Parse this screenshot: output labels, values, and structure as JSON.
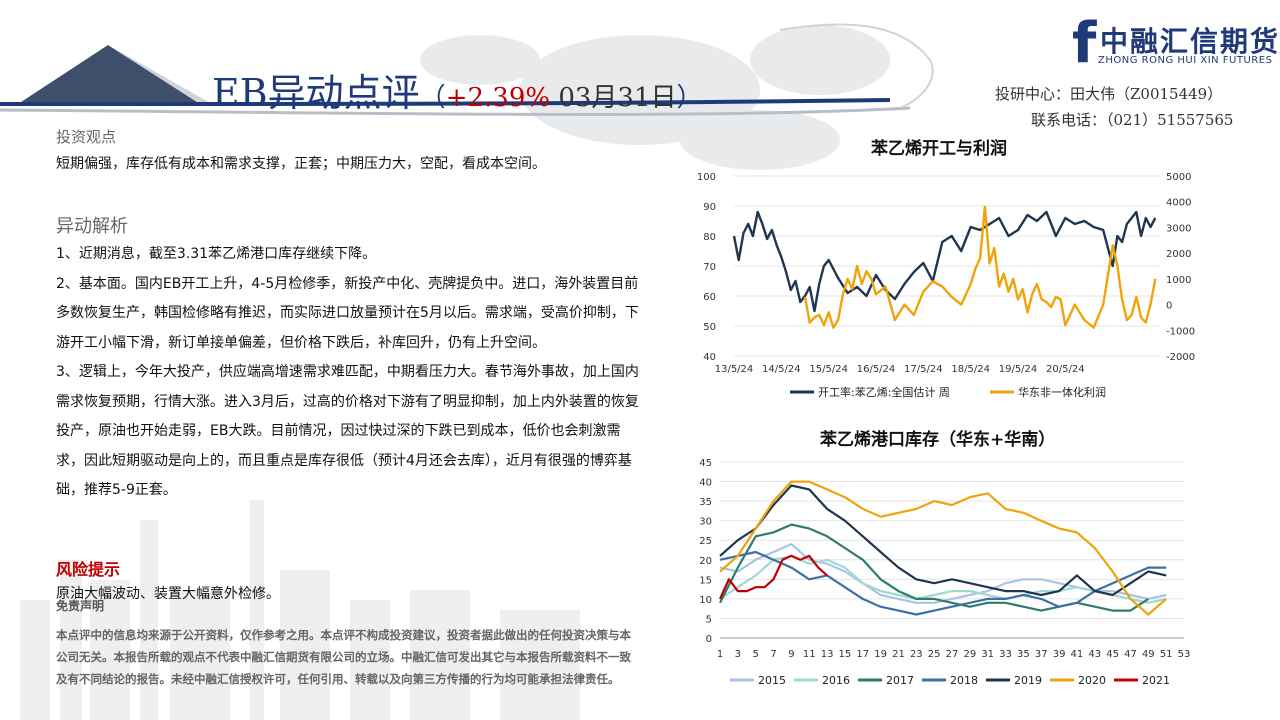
{
  "header": {
    "title_main": "EB异动点评",
    "paren_open": "（",
    "pct": "+2.39%",
    "date": " 03月31日",
    "paren_close": "）"
  },
  "brand": {
    "mark": "f",
    "name_cn": "中融汇信期货",
    "name_en": "ZHONG RONG HUI XIN FUTURES"
  },
  "contact": {
    "line1": "投研中心：田大伟（Z0015449）",
    "line2": "联系电话：（021）51557565"
  },
  "sections": {
    "view_title": "投资观点",
    "view_text": "短期偏强，库存低有成本和需求支撑，正套；中期压力大，空配，看成本空间。",
    "analysis_title": "异动解析",
    "analysis_paras": [
      "1、近期消息，截至3.31苯乙烯港口库存继续下降。",
      "2、基本面。国内EB开工上升，4-5月检修季，新投产中化、壳牌提负中。进口，海外装置目前多数恢复生产，韩国检修略有推迟，而实际进口放量预计在5月以后。需求端，受高价抑制，下游开工小幅下滑，新订单接单偏差，但价格下跌后，补库回升，仍有上升空间。",
      "3、逻辑上，今年大投产，供应端高增速需求难匹配，中期看压力大。春节海外事故，加上国内需求恢复预期，行情大涨。进入3月后，过高的价格对下游有了明显抑制，加上内外装置的恢复投产，原油也开始走弱，EB大跌。目前情况，因过快过深的下跌已到成本，低价也会刺激需求，因此短期驱动是向上的，而且重点是库存很低（预计4月还会去库），近月有很强的博弈基础，推荐5-9正套。"
    ],
    "risk_title": "风险提示",
    "risk_text": "原油大幅波动、装置大幅意外检修。",
    "disclaimer_title": "免责声明",
    "disclaimer_text": "本点评中的信息均来源于公开资料，仅作参考之用。本点评不构成投资建议，投资者据此做出的任何投资决策与本公司无关。本报告所载的观点不代表中融汇信期货有限公司的立场。中融汇信可发出其它与本报告所载资料不一致及有不同结论的报告。未经中融汇信授权许可，任何引用、转载以及向第三方传播的行为均可能承担法律责任。"
  },
  "chart_data": [
    {
      "type": "line",
      "title": "苯乙烯开工与利润",
      "x_ticks": [
        "13/5/24",
        "14/5/24",
        "15/5/24",
        "16/5/24",
        "17/5/24",
        "18/5/24",
        "19/5/24",
        "20/5/24"
      ],
      "y_left": [
        40,
        100
      ],
      "y_left_ticks": [
        40,
        50,
        60,
        70,
        80,
        90,
        100
      ],
      "y_right": [
        -2000,
        5000
      ],
      "y_right_ticks": [
        -2000,
        -1000,
        0,
        1000,
        2000,
        3000,
        4000,
        5000
      ],
      "series": [
        {
          "name": "开工率:苯乙烯:全国估计 周",
          "axis": "left",
          "color": "#1f3550",
          "x": [
            13.0,
            13.1,
            13.2,
            13.3,
            13.4,
            13.5,
            13.6,
            13.7,
            13.8,
            13.9,
            14.0,
            14.1,
            14.2,
            14.3,
            14.4,
            14.5,
            14.6,
            14.7,
            14.8,
            14.9,
            15.0,
            15.2,
            15.4,
            15.6,
            15.8,
            16.0,
            16.2,
            16.4,
            16.6,
            16.8,
            17.0,
            17.2,
            17.4,
            17.6,
            17.8,
            18.0,
            18.2,
            18.4,
            18.6,
            18.8,
            19.0,
            19.2,
            19.4,
            19.6,
            19.8,
            20.0,
            20.2,
            20.4,
            20.6,
            20.8,
            21.0,
            21.1,
            21.2,
            21.3,
            21.4,
            21.5,
            21.6,
            21.7,
            21.8,
            21.9
          ],
          "y": [
            80,
            72,
            81,
            84,
            80,
            88,
            84,
            79,
            82,
            77,
            73,
            68,
            62,
            65,
            58,
            60,
            63,
            55,
            64,
            70,
            72,
            66,
            61,
            63,
            60,
            67,
            62,
            59,
            64,
            68,
            71,
            65,
            78,
            80,
            75,
            83,
            82,
            84,
            86,
            80,
            82,
            87,
            85,
            88,
            80,
            86,
            84,
            85,
            83,
            82,
            70,
            80,
            78,
            84,
            86,
            88,
            80,
            86,
            83,
            86
          ]
        },
        {
          "name": "华东非一体化利润",
          "axis": "right",
          "color": "#f0a30a",
          "x": [
            14.5,
            14.6,
            14.7,
            14.8,
            14.9,
            15.0,
            15.1,
            15.2,
            15.3,
            15.4,
            15.5,
            15.6,
            15.7,
            15.8,
            15.9,
            16.0,
            16.2,
            16.4,
            16.6,
            16.8,
            17.0,
            17.2,
            17.4,
            17.6,
            17.8,
            18.0,
            18.1,
            18.2,
            18.3,
            18.4,
            18.5,
            18.6,
            18.7,
            18.8,
            18.9,
            19.0,
            19.1,
            19.2,
            19.3,
            19.4,
            19.5,
            19.6,
            19.7,
            19.8,
            19.9,
            20.0,
            20.2,
            20.4,
            20.6,
            20.8,
            21.0,
            21.1,
            21.2,
            21.3,
            21.4,
            21.5,
            21.6,
            21.7,
            21.8,
            21.9
          ],
          "y": [
            300,
            -700,
            -500,
            -400,
            -800,
            -300,
            -900,
            -600,
            400,
            1000,
            600,
            1500,
            800,
            1300,
            1000,
            400,
            700,
            -600,
            0,
            -400,
            500,
            900,
            700,
            300,
            0,
            800,
            1400,
            1800,
            3800,
            1600,
            2200,
            700,
            1200,
            500,
            1000,
            200,
            600,
            -300,
            400,
            800,
            200,
            100,
            -100,
            300,
            200,
            -800,
            0,
            -600,
            -900,
            0,
            2300,
            1500,
            200,
            -600,
            -400,
            300,
            -500,
            -700,
            0,
            1000
          ]
        }
      ]
    },
    {
      "type": "line",
      "title": "苯乙烯港口库存（华东+华南）",
      "x_ticks": [
        1,
        3,
        5,
        7,
        9,
        11,
        13,
        15,
        17,
        19,
        21,
        23,
        25,
        27,
        29,
        31,
        33,
        35,
        37,
        39,
        41,
        43,
        45,
        47,
        49,
        51,
        53
      ],
      "y_range": [
        0,
        45
      ],
      "y_ticks": [
        0,
        5,
        10,
        15,
        20,
        25,
        30,
        35,
        40,
        45
      ],
      "series": [
        {
          "name": "2015",
          "color": "#a9c4e4",
          "x": [
            1,
            3,
            5,
            7,
            9,
            11,
            13,
            15,
            17,
            19,
            21,
            23,
            25,
            27,
            29,
            31,
            33,
            35,
            37,
            39,
            41,
            43,
            45,
            47,
            49,
            51
          ],
          "y": [
            18,
            17,
            20,
            22,
            24,
            20,
            19,
            17,
            14,
            11,
            10,
            9,
            9,
            10,
            11,
            12,
            14,
            15,
            15,
            14,
            13,
            12,
            12,
            11,
            10,
            11
          ]
        },
        {
          "name": "2016",
          "color": "#9fd9cf",
          "x": [
            1,
            3,
            5,
            7,
            9,
            11,
            13,
            15,
            17,
            19,
            21,
            23,
            25,
            27,
            29,
            31,
            33,
            35,
            37,
            39,
            41,
            43,
            45,
            47,
            49,
            51
          ],
          "y": [
            10,
            13,
            16,
            20,
            21,
            19,
            20,
            18,
            14,
            12,
            11,
            10,
            11,
            12,
            12,
            11,
            10,
            11,
            12,
            12,
            13,
            12,
            11,
            10,
            9,
            10
          ]
        },
        {
          "name": "2017",
          "color": "#2e7d6b",
          "x": [
            1,
            3,
            5,
            7,
            9,
            11,
            13,
            15,
            17,
            19,
            21,
            23,
            25,
            27,
            29,
            31,
            33,
            35,
            37,
            39,
            41,
            43,
            45,
            47,
            49
          ],
          "y": [
            9,
            18,
            26,
            27,
            29,
            28,
            26,
            23,
            20,
            15,
            12,
            10,
            10,
            9,
            8,
            9,
            9,
            8,
            7,
            8,
            9,
            8,
            7,
            7,
            10
          ]
        },
        {
          "name": "2018",
          "color": "#3e6fa2",
          "x": [
            1,
            3,
            5,
            7,
            9,
            11,
            13,
            15,
            17,
            19,
            21,
            23,
            25,
            27,
            29,
            31,
            33,
            35,
            37,
            39,
            41,
            43,
            45,
            47,
            49,
            51
          ],
          "y": [
            20,
            21,
            22,
            20,
            18,
            15,
            16,
            13,
            10,
            8,
            7,
            6,
            7,
            8,
            9,
            10,
            10,
            11,
            10,
            8,
            9,
            12,
            14,
            16,
            18,
            18
          ]
        },
        {
          "name": "2019",
          "color": "#1f3550",
          "x": [
            1,
            3,
            5,
            7,
            9,
            11,
            13,
            15,
            17,
            19,
            21,
            23,
            25,
            27,
            29,
            31,
            33,
            35,
            37,
            39,
            41,
            43,
            45,
            47,
            49,
            51
          ],
          "y": [
            21,
            25,
            28,
            34,
            39,
            38,
            33,
            30,
            26,
            22,
            18,
            15,
            14,
            15,
            14,
            13,
            12,
            12,
            11,
            12,
            16,
            12,
            11,
            14,
            17,
            16
          ]
        },
        {
          "name": "2020",
          "color": "#f0a30a",
          "x": [
            1,
            3,
            5,
            7,
            9,
            11,
            13,
            15,
            17,
            19,
            21,
            23,
            25,
            27,
            29,
            31,
            33,
            35,
            37,
            39,
            41,
            43,
            45,
            47,
            49,
            51
          ],
          "y": [
            17,
            21,
            28,
            35,
            40,
            40,
            38,
            36,
            33,
            31,
            32,
            33,
            35,
            34,
            36,
            37,
            33,
            32,
            30,
            28,
            27,
            23,
            17,
            10,
            6,
            10
          ]
        },
        {
          "name": "2021",
          "color": "#c00000",
          "x": [
            1,
            2,
            3,
            4,
            5,
            6,
            7,
            8,
            9,
            10,
            11,
            12,
            13
          ],
          "y": [
            10,
            15,
            12,
            12,
            13,
            13,
            15,
            20,
            21,
            20,
            21,
            18,
            16
          ]
        }
      ]
    }
  ]
}
